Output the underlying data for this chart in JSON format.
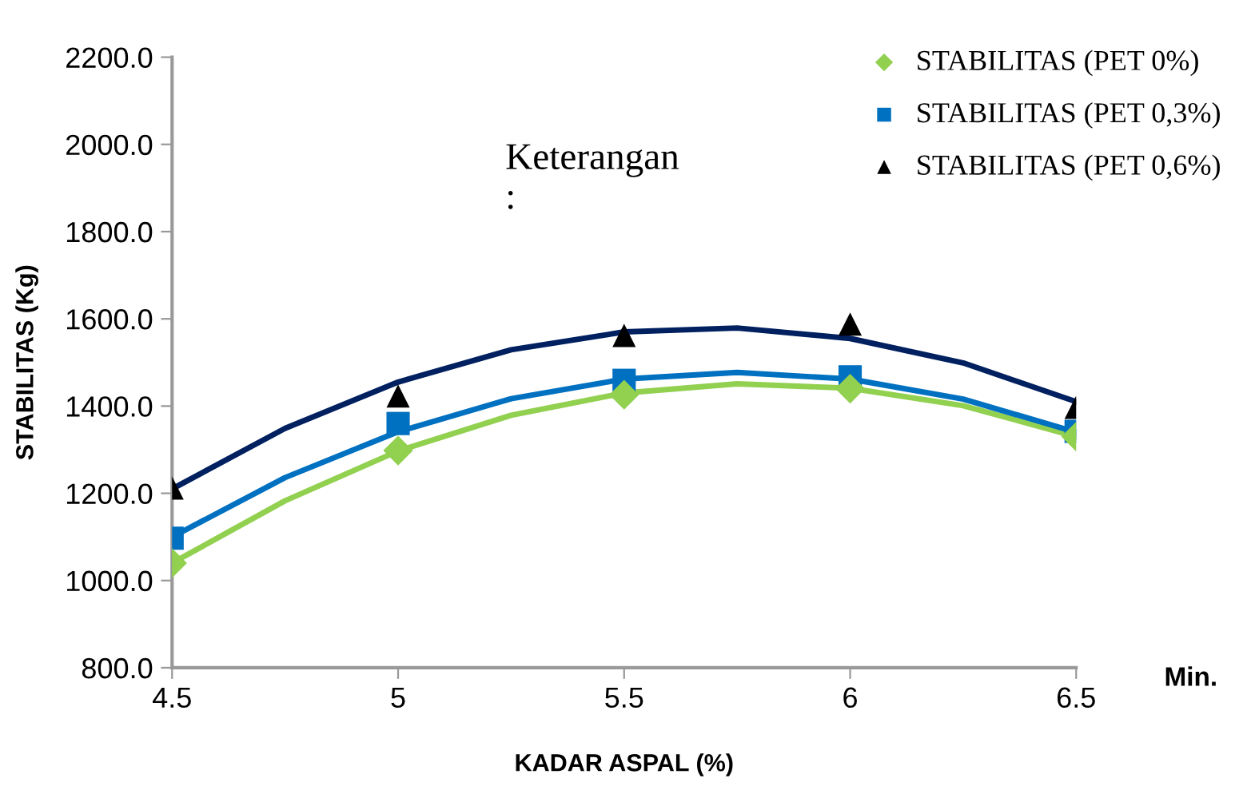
{
  "chart_data": {
    "type": "scatter",
    "xlabel": "KADAR ASPAL (%)",
    "ylabel": "STABILITAS (Kg)",
    "annotations": [
      "Keterangan\n:",
      "Min."
    ],
    "x": [
      4.5,
      5,
      5.5,
      6,
      6.5
    ],
    "series": [
      {
        "name": "STABILITAS (PET 0%)",
        "color": "#92d050",
        "marker": "diamond",
        "values": [
          1040,
          1298,
          1426,
          1440,
          1330
        ]
      },
      {
        "name": "STABILITAS (PET 0,3%)",
        "color": "#0070c0",
        "marker": "square",
        "values": [
          1097,
          1360,
          1459,
          1467,
          1342
        ]
      },
      {
        "name": "STABILITAS (PET 0,6%)",
        "color": "#000000",
        "marker": "triangle",
        "values": [
          1212,
          1423,
          1562,
          1588,
          1397
        ]
      },
      {
        "type": "line",
        "color": "#92d050",
        "marker": "none",
        "x": [
          4.5,
          4.75,
          5,
          5.25,
          5.5,
          5.75,
          6,
          6.25,
          6.5
        ],
        "values": [
          1040,
          1183,
          1297,
          1379,
          1430,
          1451,
          1441,
          1401,
          1330
        ]
      },
      {
        "type": "line",
        "color": "#0070c0",
        "marker": "none",
        "x": [
          4.5,
          4.75,
          5,
          5.25,
          5.5,
          5.75,
          6,
          6.25,
          6.5
        ],
        "values": [
          1100,
          1236,
          1341,
          1417,
          1462,
          1477,
          1462,
          1416,
          1340
        ]
      },
      {
        "type": "line",
        "color": "#002060",
        "marker": "none",
        "x": [
          4.5,
          4.75,
          5,
          5.25,
          5.5,
          5.75,
          6,
          6.25,
          6.5
        ],
        "values": [
          1210,
          1349,
          1455,
          1529,
          1570,
          1579,
          1555,
          1499,
          1410
        ]
      }
    ],
    "xlim": [
      4.5,
      6.5
    ],
    "xticks": [
      4.5,
      5,
      5.5,
      6,
      6.5
    ],
    "ylim": [
      800,
      2200
    ],
    "yticks": [
      {
        "value": 800,
        "label": "800.0"
      },
      {
        "value": 1000,
        "label": "1000.0"
      },
      {
        "value": 1200,
        "label": "1200.0"
      },
      {
        "value": 1400,
        "label": "1400.0"
      },
      {
        "value": 1600,
        "label": "1600.0"
      },
      {
        "value": 1800,
        "label": "1800.0"
      },
      {
        "value": 2000,
        "label": "2000.0"
      },
      {
        "value": 2200,
        "label": "2200.0"
      }
    ],
    "legend": "top right",
    "grid": false
  }
}
